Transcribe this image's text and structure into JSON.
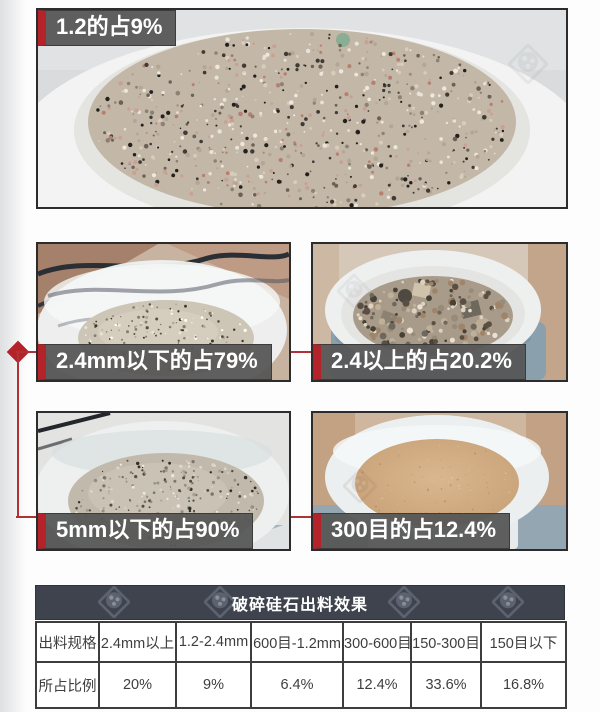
{
  "colors": {
    "accent_red": "#b4232a",
    "connector_red": "#b03136",
    "label_bg": "#565656",
    "table_header_bg": "#3e434e",
    "table_border": "#3d3d3d"
  },
  "annotations": {
    "top": "1.2的占9%",
    "mid_left": "2.4mm以下的占79%",
    "mid_right": "2.4以上的占20.2%",
    "bot_left": "5mm以下的占90%",
    "bot_right": "300目的占12.4%"
  },
  "table": {
    "title": "破碎硅石出料效果",
    "spec_row": {
      "label": "出料规格",
      "cells": [
        "2.4mm以上",
        "1.2-2.4mm",
        "600目-1.2mm",
        "300-600目",
        "150-300目",
        "150目以下"
      ]
    },
    "ratio_row": {
      "label": "所占比例",
      "cells": [
        "20%",
        "9%",
        "6.4%",
        "12.4%",
        "33.6%",
        "16.8%"
      ]
    }
  },
  "chart_data": {
    "type": "table",
    "title": "破碎硅石出料效果",
    "columns": [
      "出料规格",
      "2.4mm以上",
      "1.2-2.4mm",
      "600目-1.2mm",
      "300-600目",
      "150-300目",
      "150目以下"
    ],
    "rows": [
      [
        "所占比例",
        "20%",
        "9%",
        "6.4%",
        "12.4%",
        "33.6%",
        "16.8%"
      ]
    ]
  },
  "icons": {
    "watermark": "watermark-logo-icon"
  }
}
